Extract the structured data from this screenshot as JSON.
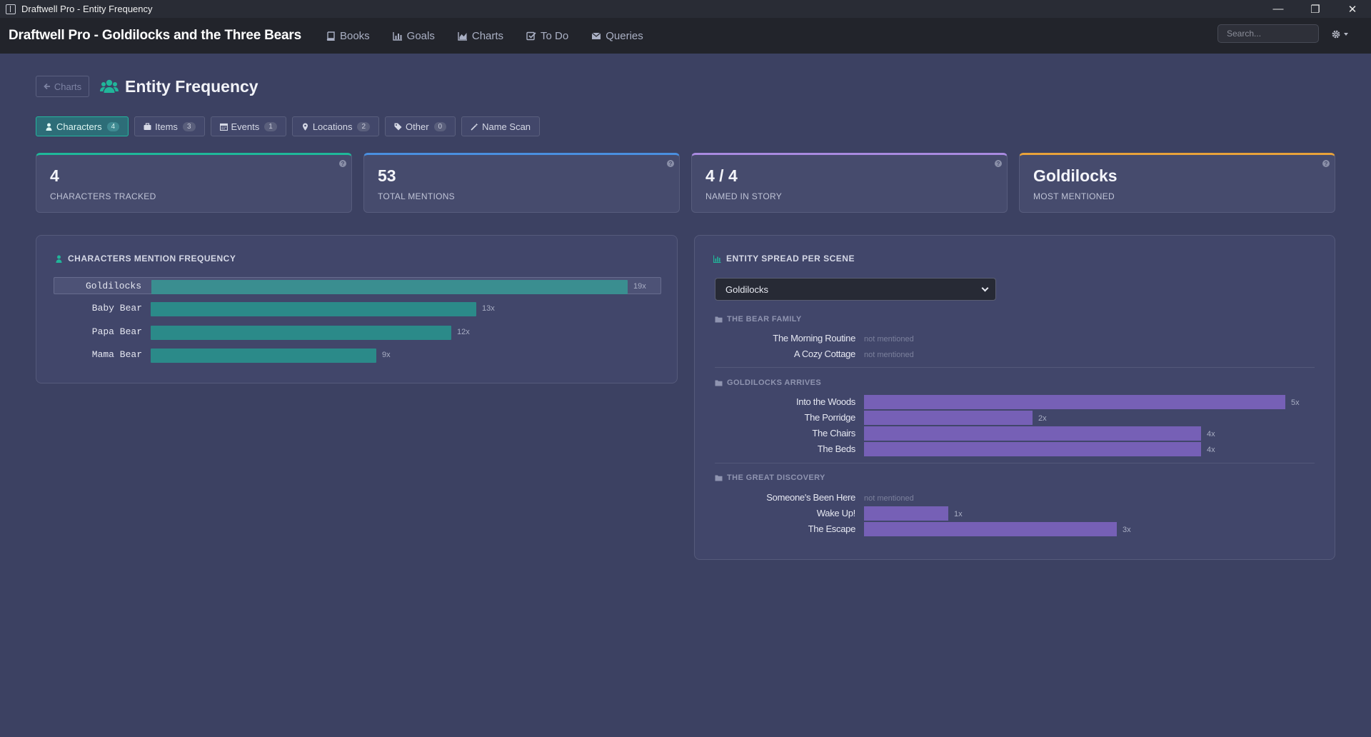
{
  "window": {
    "title": "Draftwell Pro - Entity Frequency"
  },
  "navbar": {
    "brand": "Draftwell Pro - Goldilocks and the Three Bears",
    "items": [
      {
        "label": "Books",
        "icon": "book-icon"
      },
      {
        "label": "Goals",
        "icon": "bar-chart-icon"
      },
      {
        "label": "Charts",
        "icon": "area-chart-icon"
      },
      {
        "label": "To Do",
        "icon": "check-square-icon"
      },
      {
        "label": "Queries",
        "icon": "envelope-icon"
      }
    ],
    "search_placeholder": "Search..."
  },
  "header": {
    "back_label": "Charts",
    "title": "Entity Frequency"
  },
  "tabs": [
    {
      "label": "Characters",
      "count": "4",
      "active": true
    },
    {
      "label": "Items",
      "count": "3"
    },
    {
      "label": "Events",
      "count": "1"
    },
    {
      "label": "Locations",
      "count": "2"
    },
    {
      "label": "Other",
      "count": "0"
    },
    {
      "label": "Name Scan"
    }
  ],
  "stats": [
    {
      "value": "4",
      "label": "CHARACTERS TRACKED",
      "accent": "#1fb89a"
    },
    {
      "value": "53",
      "label": "TOTAL MENTIONS",
      "accent": "#4a8fe0"
    },
    {
      "value": "4 / 4",
      "label": "NAMED IN STORY",
      "accent": "#a98ae0"
    },
    {
      "value": "Goldilocks",
      "label": "MOST MENTIONED",
      "accent": "#e8a23a"
    }
  ],
  "frequency_panel": {
    "title": "CHARACTERS MENTION FREQUENCY",
    "bars": [
      {
        "name": "Goldilocks",
        "value": 19,
        "label": "19x"
      },
      {
        "name": "Baby Bear",
        "value": 13,
        "label": "13x"
      },
      {
        "name": "Papa Bear",
        "value": 12,
        "label": "12x"
      },
      {
        "name": "Mama Bear",
        "value": 9,
        "label": "9x"
      }
    ]
  },
  "spread_panel": {
    "title": "ENTITY SPREAD PER SCENE",
    "selected_entity": "Goldilocks",
    "not_mentioned_label": "not mentioned",
    "groups": [
      {
        "title": "THE BEAR FAMILY",
        "scenes": [
          {
            "name": "The Morning Routine",
            "value": 0
          },
          {
            "name": "A Cozy Cottage",
            "value": 0
          }
        ]
      },
      {
        "title": "GOLDILOCKS ARRIVES",
        "scenes": [
          {
            "name": "Into the Woods",
            "value": 5,
            "label": "5x"
          },
          {
            "name": "The Porridge",
            "value": 2,
            "label": "2x"
          },
          {
            "name": "The Chairs",
            "value": 4,
            "label": "4x"
          },
          {
            "name": "The Beds",
            "value": 4,
            "label": "4x"
          }
        ]
      },
      {
        "title": "THE GREAT DISCOVERY",
        "scenes": [
          {
            "name": "Someone's Been Here",
            "value": 0
          },
          {
            "name": "Wake Up!",
            "value": 1,
            "label": "1x"
          },
          {
            "name": "The Escape",
            "value": 3,
            "label": "3x"
          }
        ]
      }
    ]
  }
}
